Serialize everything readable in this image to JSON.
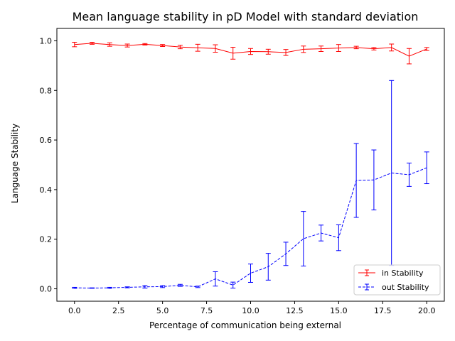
{
  "chart_data": {
    "type": "line",
    "title": "Mean language stability in pD Model with standard deviation",
    "xlabel": "Percentage of communication being external",
    "ylabel": "Language Stability",
    "xlim": [
      -1.0,
      21.0
    ],
    "ylim": [
      -0.05,
      1.05
    ],
    "xticks": [
      0.0,
      2.5,
      5.0,
      7.5,
      10.0,
      12.5,
      15.0,
      17.5,
      20.0
    ],
    "xtick_labels": [
      "0.0",
      "2.5",
      "5.0",
      "7.5",
      "10.0",
      "12.5",
      "15.0",
      "17.5",
      "20.0"
    ],
    "yticks": [
      0.0,
      0.2,
      0.4,
      0.6,
      0.8,
      1.0
    ],
    "ytick_labels": [
      "0.0",
      "0.2",
      "0.4",
      "0.6",
      "0.8",
      "1.0"
    ],
    "grid": false,
    "legend_position": "lower-right",
    "x": [
      0,
      1,
      2,
      3,
      4,
      5,
      6,
      7,
      8,
      9,
      10,
      11,
      12,
      13,
      14,
      15,
      16,
      17,
      18,
      19,
      20
    ],
    "series": [
      {
        "name": "in Stability",
        "color": "#ff0000",
        "linestyle": "solid",
        "values": [
          0.985,
          0.99,
          0.985,
          0.981,
          0.986,
          0.981,
          0.975,
          0.972,
          0.969,
          0.95,
          0.957,
          0.956,
          0.953,
          0.966,
          0.968,
          0.971,
          0.973,
          0.968,
          0.973,
          0.938,
          0.967
        ],
        "errors": [
          0.009,
          0.004,
          0.007,
          0.006,
          0.003,
          0.004,
          0.007,
          0.014,
          0.015,
          0.024,
          0.012,
          0.01,
          0.012,
          0.013,
          0.011,
          0.014,
          0.005,
          0.005,
          0.014,
          0.031,
          0.006
        ]
      },
      {
        "name": "out Stability",
        "color": "#0000ff",
        "linestyle": "dashed",
        "values": [
          0.004,
          0.003,
          0.004,
          0.006,
          0.008,
          0.009,
          0.014,
          0.008,
          0.04,
          0.015,
          0.063,
          0.089,
          0.141,
          0.202,
          0.225,
          0.206,
          0.437,
          0.439,
          0.467,
          0.46,
          0.488
        ],
        "errors": [
          0.002,
          0.001,
          0.002,
          0.002,
          0.005,
          0.004,
          0.004,
          0.003,
          0.029,
          0.012,
          0.037,
          0.054,
          0.047,
          0.11,
          0.032,
          0.052,
          0.149,
          0.121,
          0.373,
          0.047,
          0.064
        ]
      }
    ]
  }
}
